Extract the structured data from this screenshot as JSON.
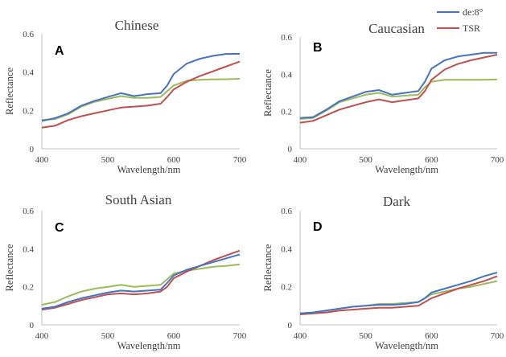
{
  "legend": {
    "entries": [
      {
        "name": "de:8°",
        "color": "#4472C4"
      },
      {
        "name": "TSR",
        "color": "#C0504D"
      }
    ],
    "placement": "top-right"
  },
  "series_colors": {
    "de8": "#4472C4",
    "tsr": "#C0504D",
    "third": "#9BBB59"
  },
  "chart_data": [
    {
      "type": "line",
      "panel": "A",
      "title": "Chinese",
      "xlabel": "Wavelength/nm",
      "ylabel": "Reflectance",
      "xlim": [
        400,
        700
      ],
      "ylim": [
        0,
        0.6
      ],
      "xticks": [
        "400",
        "500",
        "600",
        "700"
      ],
      "yticks": [
        "0",
        "0.2",
        "0.4",
        "0.6"
      ],
      "x": [
        400,
        420,
        440,
        460,
        480,
        500,
        520,
        540,
        560,
        580,
        590,
        600,
        620,
        640,
        660,
        680,
        700
      ],
      "series": [
        {
          "key": "de8",
          "values": [
            0.145,
            0.16,
            0.185,
            0.225,
            0.25,
            0.27,
            0.29,
            0.275,
            0.285,
            0.29,
            0.33,
            0.39,
            0.445,
            0.47,
            0.485,
            0.495,
            0.495
          ]
        },
        {
          "key": "tsr",
          "values": [
            0.11,
            0.12,
            0.15,
            0.17,
            0.185,
            0.2,
            0.215,
            0.22,
            0.225,
            0.235,
            0.27,
            0.31,
            0.35,
            0.38,
            0.405,
            0.43,
            0.455
          ]
        },
        {
          "key": "third",
          "values": [
            0.15,
            0.155,
            0.18,
            0.22,
            0.245,
            0.26,
            0.275,
            0.265,
            0.265,
            0.27,
            0.3,
            0.33,
            0.355,
            0.36,
            0.362,
            0.363,
            0.365
          ]
        }
      ]
    },
    {
      "type": "line",
      "panel": "B",
      "title": "Caucasian",
      "xlabel": "Wavelength/nm",
      "ylabel": "Reflectance",
      "xlim": [
        400,
        700
      ],
      "ylim": [
        0,
        0.6
      ],
      "xticks": [
        "400",
        "500",
        "600",
        "700"
      ],
      "yticks": [
        "0",
        "0.2",
        "0.4",
        "0.6"
      ],
      "x": [
        400,
        420,
        440,
        460,
        480,
        500,
        520,
        540,
        560,
        580,
        590,
        600,
        620,
        640,
        660,
        680,
        700
      ],
      "series": [
        {
          "key": "de8",
          "values": [
            0.165,
            0.17,
            0.21,
            0.255,
            0.28,
            0.305,
            0.315,
            0.29,
            0.3,
            0.31,
            0.36,
            0.43,
            0.475,
            0.495,
            0.505,
            0.515,
            0.515
          ]
        },
        {
          "key": "tsr",
          "values": [
            0.14,
            0.15,
            0.18,
            0.21,
            0.23,
            0.25,
            0.265,
            0.25,
            0.26,
            0.27,
            0.31,
            0.37,
            0.425,
            0.455,
            0.475,
            0.49,
            0.505
          ]
        },
        {
          "key": "third",
          "values": [
            0.16,
            0.165,
            0.205,
            0.25,
            0.27,
            0.29,
            0.3,
            0.28,
            0.285,
            0.29,
            0.33,
            0.36,
            0.37,
            0.37,
            0.37,
            0.37,
            0.372
          ]
        }
      ]
    },
    {
      "type": "line",
      "panel": "C",
      "title": "South Asian",
      "xlabel": "Wavelength/nm",
      "ylabel": "Reflectance",
      "xlim": [
        400,
        700
      ],
      "ylim": [
        0,
        0.6
      ],
      "xticks": [
        "400",
        "500",
        "600",
        "700"
      ],
      "yticks": [
        "0",
        "0.2",
        "0.4",
        "0.6"
      ],
      "x": [
        400,
        420,
        440,
        460,
        480,
        500,
        520,
        540,
        560,
        580,
        590,
        600,
        620,
        640,
        660,
        680,
        700
      ],
      "series": [
        {
          "key": "de8",
          "values": [
            0.085,
            0.095,
            0.12,
            0.14,
            0.155,
            0.17,
            0.18,
            0.175,
            0.18,
            0.185,
            0.22,
            0.26,
            0.29,
            0.31,
            0.33,
            0.35,
            0.37
          ]
        },
        {
          "key": "tsr",
          "values": [
            0.08,
            0.09,
            0.11,
            0.13,
            0.145,
            0.16,
            0.165,
            0.16,
            0.165,
            0.175,
            0.2,
            0.245,
            0.28,
            0.31,
            0.34,
            0.365,
            0.39
          ]
        },
        {
          "key": "third",
          "values": [
            0.105,
            0.12,
            0.15,
            0.175,
            0.19,
            0.2,
            0.21,
            0.2,
            0.205,
            0.21,
            0.24,
            0.27,
            0.285,
            0.295,
            0.305,
            0.31,
            0.318
          ]
        }
      ]
    },
    {
      "type": "line",
      "panel": "D",
      "title": "Dark",
      "xlabel": "Wavelength/nm",
      "ylabel": "Reflectance",
      "xlim": [
        400,
        700
      ],
      "ylim": [
        0,
        0.6
      ],
      "xticks": [
        "400",
        "500",
        "600",
        "700"
      ],
      "yticks": [
        "0",
        "0.2",
        "0.4",
        "0.6"
      ],
      "x": [
        400,
        420,
        440,
        460,
        480,
        500,
        520,
        540,
        560,
        580,
        590,
        600,
        620,
        640,
        660,
        680,
        700
      ],
      "series": [
        {
          "key": "de8",
          "values": [
            0.06,
            0.065,
            0.075,
            0.085,
            0.095,
            0.1,
            0.105,
            0.105,
            0.11,
            0.12,
            0.14,
            0.17,
            0.19,
            0.21,
            0.23,
            0.255,
            0.275
          ]
        },
        {
          "key": "tsr",
          "values": [
            0.055,
            0.06,
            0.065,
            0.075,
            0.08,
            0.085,
            0.09,
            0.09,
            0.095,
            0.1,
            0.12,
            0.14,
            0.165,
            0.19,
            0.21,
            0.23,
            0.255
          ]
        },
        {
          "key": "third",
          "values": [
            0.06,
            0.065,
            0.075,
            0.085,
            0.095,
            0.1,
            0.11,
            0.11,
            0.115,
            0.12,
            0.14,
            0.16,
            0.175,
            0.19,
            0.2,
            0.215,
            0.23
          ]
        }
      ]
    }
  ]
}
